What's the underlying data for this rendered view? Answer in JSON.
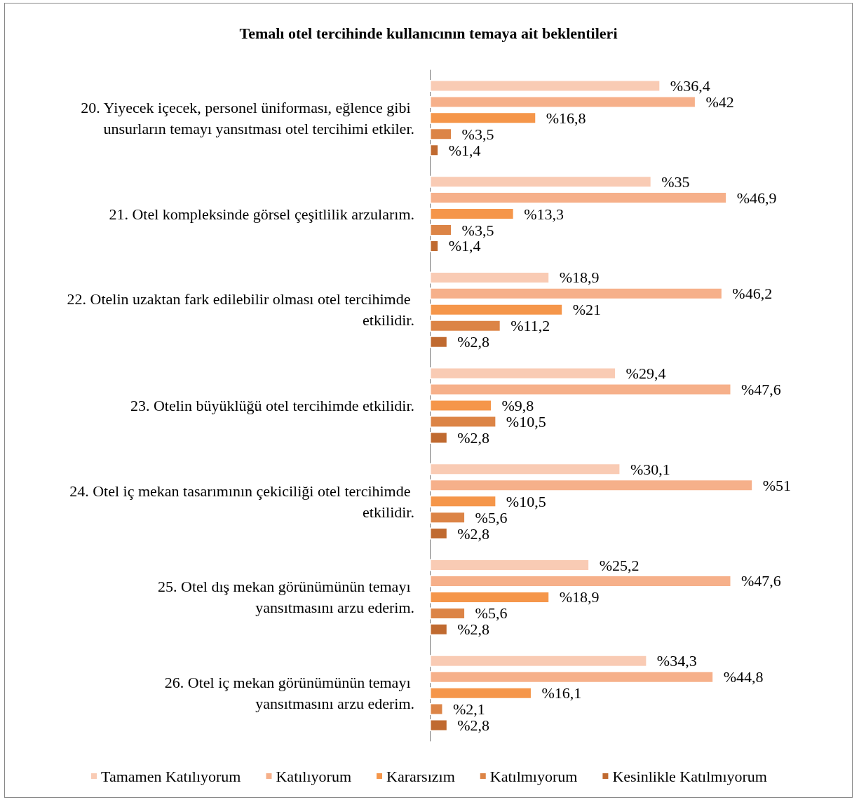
{
  "chart_data": {
    "type": "bar",
    "orientation": "horizontal",
    "title": "Temalı otel tercihinde kullanıcının temaya ait beklentileri",
    "categories": [
      "20. Yiyecek içecek, personel üniforması, eğlence gibi unsurların temayı yansıtması otel tercihimi etkiler.",
      "21. Otel kompleksinde görsel çeşitlilik arzularım.",
      "22. Otelin uzaktan fark edilebilir olması otel tercihimde etkilidir.",
      "23. Otelin büyüklüğü otel tercihimde etkilidir.",
      "24. Otel iç mekan tasarımının çekiciliği otel tercihimde etkilidir.",
      "25. Otel dış mekan görünümünün temayı yansıtmasını arzu ederim.",
      "26. Otel iç mekan görünümünün temayı yansıtmasını arzu ederim."
    ],
    "series": [
      {
        "name": "Tamamen Katılıyorum",
        "color": "#f9cbb4",
        "values": [
          36.4,
          35,
          18.9,
          29.4,
          30.1,
          25.2,
          34.3
        ],
        "value_labels": [
          "%36,4",
          "%35",
          "%18,9",
          "%29,4",
          "%30,1",
          "%25,2",
          "%34,3"
        ]
      },
      {
        "name": "Katılıyorum",
        "color": "#f6b08a",
        "values": [
          42,
          46.9,
          46.2,
          47.6,
          51,
          47.6,
          44.8
        ],
        "value_labels": [
          "%42",
          "%46,9",
          "%46,2",
          "%47,6",
          "%51",
          "%47,6",
          "%44,8"
        ]
      },
      {
        "name": "Kararsızım",
        "color": "#f5964a",
        "values": [
          16.8,
          13.3,
          21,
          9.8,
          10.5,
          18.9,
          16.1
        ],
        "value_labels": [
          "%16,8",
          "%13,3",
          "%21",
          "%9,8",
          "%10,5",
          "%18,9",
          "%16,1"
        ]
      },
      {
        "name": "Katılmıyorum",
        "color": "#dc8446",
        "values": [
          3.5,
          3.5,
          11.2,
          10.5,
          5.6,
          5.6,
          2.1
        ],
        "value_labels": [
          "%3,5",
          "%3,5",
          "%11,2",
          "%10,5",
          "%5,6",
          "%5,6",
          "%2,1"
        ]
      },
      {
        "name": "Kesinlikle Katılmıyorum",
        "color": "#c06a30",
        "values": [
          1.4,
          1.4,
          2.8,
          2.8,
          2.8,
          2.8,
          2.8
        ],
        "value_labels": [
          "%1,4",
          "%1,4",
          "%2,8",
          "%2,8",
          "%2,8",
          "%2,8",
          "%2,8"
        ]
      }
    ],
    "legend": "bottom"
  }
}
